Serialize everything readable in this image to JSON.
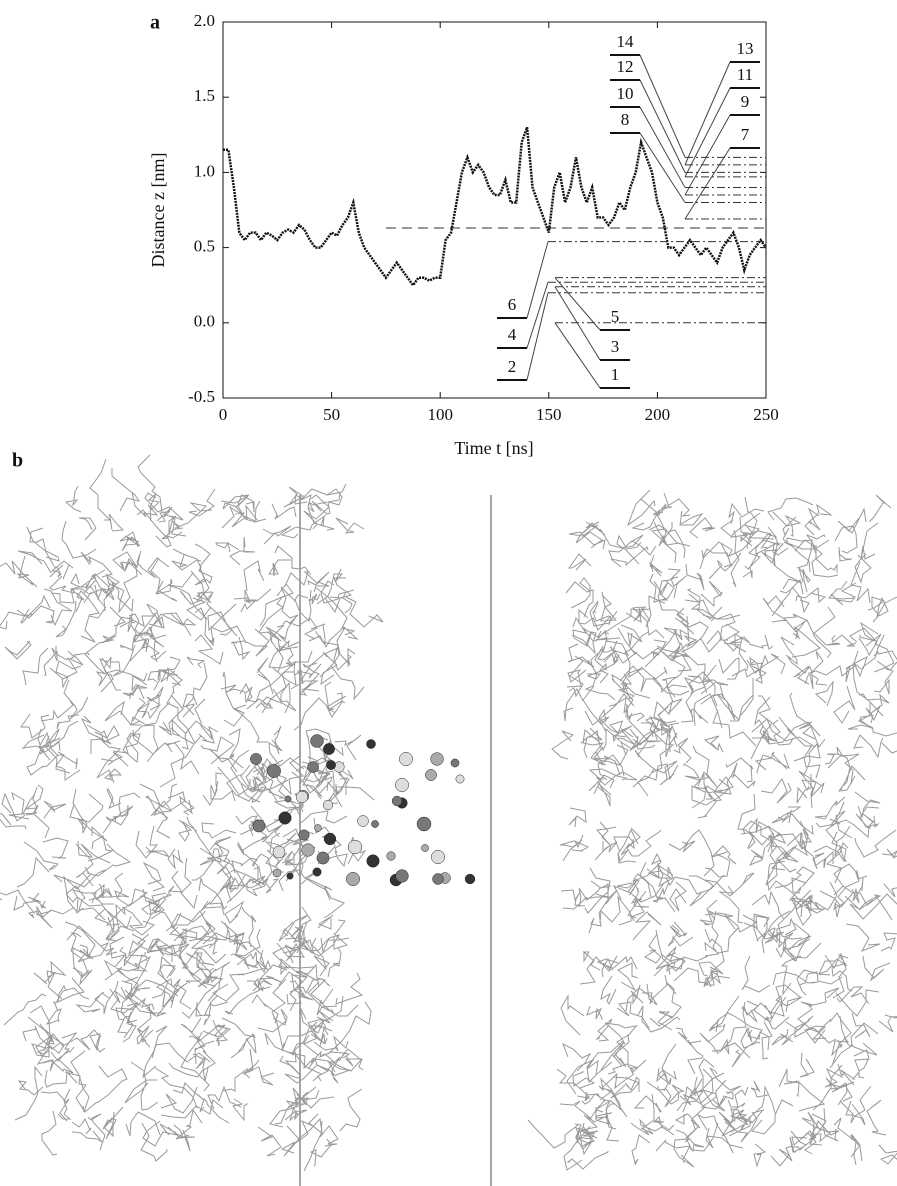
{
  "chart_data": {
    "type": "line",
    "panel_label": "a",
    "xlabel": "Time t [ns]",
    "ylabel": "Distance z [nm]",
    "xlim": [
      0,
      250
    ],
    "ylim": [
      -0.5,
      2.0
    ],
    "xticks": [
      0,
      50,
      100,
      150,
      200,
      250
    ],
    "yticks": [
      {
        "value": -0.5,
        "label": "-0.5"
      },
      {
        "value": 0,
        "label": "0.0"
      },
      {
        "value": 0.5,
        "label": "0.5"
      },
      {
        "value": 1,
        "label": "1.0"
      },
      {
        "value": 1.5,
        "label": "1.5"
      },
      {
        "value": 2,
        "label": "2.0"
      }
    ],
    "color": "#111111",
    "reference_line": 0.63,
    "x": [
      0,
      2.5,
      5,
      7.5,
      10,
      12.5,
      15,
      17.5,
      20,
      22.5,
      25,
      27.5,
      30,
      32.5,
      35,
      37.5,
      40,
      42.5,
      45,
      47.5,
      50,
      52.5,
      55,
      57.5,
      60,
      62.5,
      65,
      67.5,
      70,
      72.5,
      75,
      77.5,
      80,
      82.5,
      85,
      87.5,
      90,
      92.5,
      95,
      97.5,
      100,
      102.5,
      105,
      107.5,
      110,
      112.5,
      115,
      117.5,
      120,
      122.5,
      125,
      127.5,
      130,
      132.5,
      135,
      137.5,
      140,
      142.5,
      145,
      147.5,
      150,
      152.5,
      155,
      157.5,
      160,
      162.5,
      165,
      167.5,
      170,
      172.5,
      175,
      177.5,
      180,
      182.5,
      185,
      187.5,
      190,
      192.5,
      195,
      197.5,
      200,
      202.5,
      205,
      207.5,
      210,
      212.5,
      215,
      217.5,
      220,
      222.5,
      225,
      227.5,
      230,
      232.5,
      235,
      237.5,
      240,
      242.5,
      245,
      247.5,
      250
    ],
    "values": [
      1.15,
      1.15,
      0.9,
      0.6,
      0.55,
      0.6,
      0.6,
      0.55,
      0.6,
      0.58,
      0.55,
      0.6,
      0.62,
      0.6,
      0.65,
      0.62,
      0.55,
      0.5,
      0.5,
      0.55,
      0.6,
      0.58,
      0.65,
      0.7,
      0.8,
      0.6,
      0.5,
      0.45,
      0.4,
      0.35,
      0.3,
      0.35,
      0.4,
      0.35,
      0.3,
      0.25,
      0.3,
      0.3,
      0.28,
      0.3,
      0.3,
      0.55,
      0.6,
      0.8,
      1.0,
      1.1,
      1.0,
      1.05,
      1.0,
      0.9,
      0.85,
      0.85,
      0.95,
      0.8,
      0.8,
      1.2,
      1.3,
      0.9,
      0.8,
      0.7,
      0.6,
      0.9,
      1.0,
      0.8,
      0.9,
      1.1,
      0.9,
      0.8,
      0.9,
      0.7,
      0.7,
      0.65,
      0.7,
      0.8,
      0.75,
      0.9,
      1.0,
      1.2,
      1.1,
      1.0,
      0.8,
      0.7,
      0.5,
      0.5,
      0.45,
      0.5,
      0.55,
      0.5,
      0.45,
      0.5,
      0.45,
      0.4,
      0.5,
      0.55,
      0.6,
      0.5,
      0.35,
      0.45,
      0.5,
      0.55,
      0.5
    ],
    "levels": [
      {
        "label": "1",
        "value": 0.0
      },
      {
        "label": "2",
        "value": 0.2
      },
      {
        "label": "3",
        "value": 0.24
      },
      {
        "label": "4",
        "value": 0.27
      },
      {
        "label": "5",
        "value": 0.3
      },
      {
        "label": "6",
        "value": 0.54
      },
      {
        "label": "7",
        "value": 0.69
      },
      {
        "label": "8",
        "value": 0.8
      },
      {
        "label": "9",
        "value": 0.85
      },
      {
        "label": "10",
        "value": 0.9
      },
      {
        "label": "11",
        "value": 0.97
      },
      {
        "label": "12",
        "value": 1.0
      },
      {
        "label": "13",
        "value": 1.05
      },
      {
        "label": "14",
        "value": 1.1
      }
    ]
  },
  "panel_b": {
    "label": "b"
  }
}
